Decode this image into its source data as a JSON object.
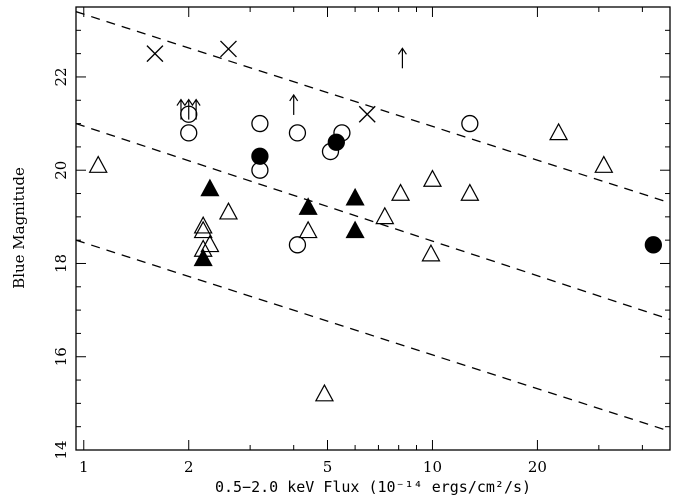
{
  "chart_data": {
    "type": "scatter",
    "title": "",
    "xlabel": "0.5−2.0 keV Flux (10⁻¹⁴ ergs/cm²/s)",
    "ylabel": "Blue Magnitude",
    "x_scale": "log",
    "xlim": [
      0.95,
      48
    ],
    "ylim": [
      14,
      23.5
    ],
    "x_ticks": [
      1,
      2,
      5,
      10,
      20
    ],
    "x_tick_labels": [
      "1",
      "2",
      "5",
      "10",
      "20"
    ],
    "y_ticks": [
      14,
      16,
      18,
      20,
      22
    ],
    "y_tick_labels": [
      "14",
      "16",
      "18",
      "20",
      "22"
    ],
    "grid": false,
    "series": [
      {
        "marker": "open-circle",
        "points": [
          [
            2.0,
            21.2
          ],
          [
            2.0,
            20.8
          ],
          [
            3.2,
            21.0
          ],
          [
            3.2,
            20.0
          ],
          [
            4.1,
            20.8
          ],
          [
            5.1,
            20.4
          ],
          [
            5.5,
            20.8
          ],
          [
            4.1,
            18.4
          ],
          [
            12.8,
            21.0
          ]
        ]
      },
      {
        "marker": "filled-circle",
        "points": [
          [
            3.2,
            20.3
          ],
          [
            5.3,
            20.6
          ],
          [
            43.0,
            18.4
          ]
        ]
      },
      {
        "marker": "open-triangle",
        "points": [
          [
            1.1,
            20.1
          ],
          [
            2.2,
            18.8
          ],
          [
            2.2,
            18.7
          ],
          [
            2.3,
            18.4
          ],
          [
            2.2,
            18.3
          ],
          [
            2.6,
            19.1
          ],
          [
            4.4,
            18.7
          ],
          [
            7.3,
            19.0
          ],
          [
            8.1,
            19.5
          ],
          [
            10.0,
            19.8
          ],
          [
            9.9,
            18.2
          ],
          [
            12.8,
            19.5
          ],
          [
            23.0,
            20.8
          ],
          [
            31.0,
            20.1
          ],
          [
            4.9,
            15.2
          ]
        ]
      },
      {
        "marker": "filled-triangle",
        "points": [
          [
            2.3,
            19.6
          ],
          [
            2.2,
            18.1
          ],
          [
            4.4,
            19.2
          ],
          [
            6.0,
            19.4
          ],
          [
            6.0,
            18.7
          ]
        ]
      },
      {
        "marker": "cross",
        "points": [
          [
            1.6,
            22.5
          ],
          [
            2.6,
            22.6
          ],
          [
            6.5,
            21.2
          ]
        ]
      },
      {
        "marker": "upper-limit-arrow",
        "points": [
          [
            1.9,
            21.3
          ],
          [
            2.0,
            21.3
          ],
          [
            2.1,
            21.3
          ],
          [
            4.0,
            21.4
          ],
          [
            8.2,
            22.4
          ]
        ]
      }
    ],
    "reference_lines": [
      {
        "style": "dashed",
        "points": [
          [
            0.95,
            23.4
          ],
          [
            48,
            19.3
          ]
        ]
      },
      {
        "style": "dashed",
        "points": [
          [
            0.95,
            21.0
          ],
          [
            48,
            16.8
          ]
        ]
      },
      {
        "style": "dashed",
        "points": [
          [
            0.95,
            18.5
          ],
          [
            48,
            14.4
          ]
        ]
      }
    ]
  }
}
